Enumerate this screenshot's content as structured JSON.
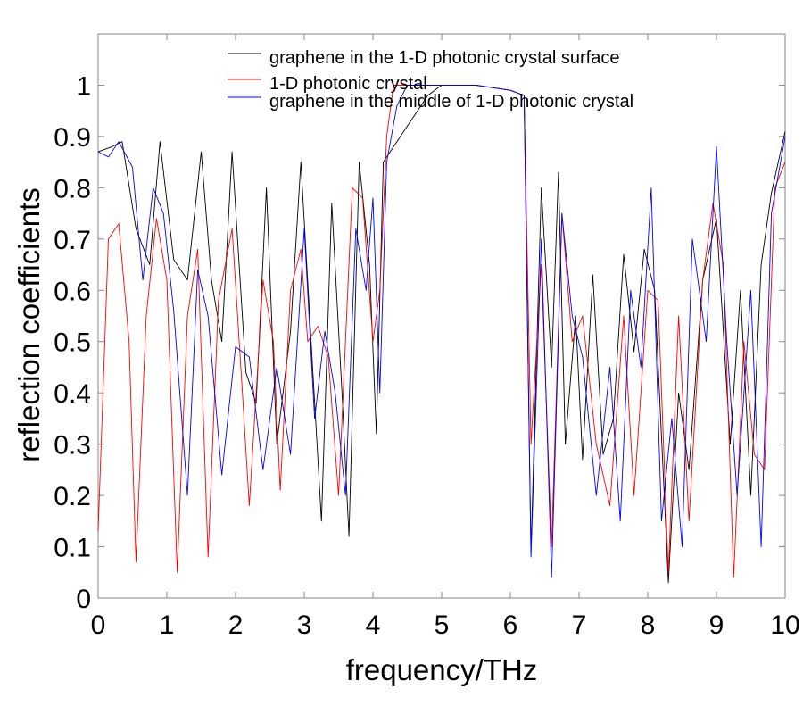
{
  "chart_data": {
    "type": "line",
    "xlabel": "frequency/THz",
    "ylabel": "reflection coefficients",
    "xlim": [
      0,
      10
    ],
    "ylim": [
      0,
      1.1
    ],
    "xticks": [
      0,
      1,
      2,
      3,
      4,
      5,
      6,
      7,
      8,
      9,
      10
    ],
    "yticks": [
      0,
      0.1,
      0.2,
      0.3,
      0.4,
      0.5,
      0.6,
      0.7,
      0.8,
      0.9,
      1
    ],
    "grid": false,
    "legend_position": "top-center",
    "series": [
      {
        "name": "graphene in the 1-D photonic crystal surface",
        "color": "#000000",
        "x": [
          0,
          0.2,
          0.35,
          0.55,
          0.75,
          0.9,
          1.1,
          1.3,
          1.5,
          1.65,
          1.8,
          1.95,
          2.15,
          2.3,
          2.45,
          2.6,
          2.8,
          2.95,
          3.1,
          3.25,
          3.4,
          3.55,
          3.65,
          3.8,
          3.95,
          4.05,
          4.15,
          4.3,
          4.5,
          4.8,
          5.0,
          5.5,
          6.0,
          6.2,
          6.3,
          6.45,
          6.6,
          6.7,
          6.8,
          6.95,
          7.05,
          7.2,
          7.35,
          7.5,
          7.65,
          7.8,
          7.95,
          8.1,
          8.3,
          8.45,
          8.6,
          8.8,
          9.0,
          9.2,
          9.35,
          9.5,
          9.65,
          9.8,
          10
        ],
        "y": [
          0.87,
          0.88,
          0.89,
          0.72,
          0.65,
          0.89,
          0.66,
          0.62,
          0.87,
          0.62,
          0.5,
          0.87,
          0.44,
          0.38,
          0.8,
          0.3,
          0.52,
          0.85,
          0.5,
          0.15,
          0.77,
          0.4,
          0.12,
          0.85,
          0.65,
          0.32,
          0.85,
          0.88,
          0.92,
          0.98,
          1.0,
          1.0,
          0.99,
          0.98,
          0.09,
          0.8,
          0.45,
          0.83,
          0.3,
          0.55,
          0.27,
          0.63,
          0.28,
          0.35,
          0.67,
          0.48,
          0.68,
          0.6,
          0.03,
          0.4,
          0.25,
          0.62,
          0.74,
          0.3,
          0.6,
          0.2,
          0.65,
          0.79,
          0.91
        ]
      },
      {
        "name": "1-D photonic crystal",
        "color": "#ff0000",
        "x": [
          0,
          0.15,
          0.3,
          0.45,
          0.55,
          0.7,
          0.85,
          1.0,
          1.15,
          1.3,
          1.45,
          1.6,
          1.75,
          1.95,
          2.1,
          2.2,
          2.4,
          2.55,
          2.65,
          2.8,
          2.95,
          3.05,
          3.2,
          3.35,
          3.5,
          3.7,
          3.85,
          4.0,
          4.1,
          4.2,
          4.3,
          4.5,
          5.0,
          5.5,
          6.0,
          6.2,
          6.3,
          6.45,
          6.6,
          6.75,
          6.9,
          7.05,
          7.25,
          7.45,
          7.65,
          7.8,
          8.0,
          8.15,
          8.3,
          8.45,
          8.6,
          8.8,
          8.95,
          9.1,
          9.25,
          9.4,
          9.55,
          9.7,
          9.85,
          10
        ],
        "y": [
          0.13,
          0.7,
          0.73,
          0.5,
          0.07,
          0.55,
          0.74,
          0.62,
          0.05,
          0.55,
          0.68,
          0.08,
          0.58,
          0.72,
          0.4,
          0.18,
          0.62,
          0.5,
          0.21,
          0.6,
          0.68,
          0.5,
          0.53,
          0.47,
          0.2,
          0.8,
          0.78,
          0.5,
          0.6,
          0.9,
          1.0,
          1.0,
          1.0,
          1.0,
          0.99,
          0.98,
          0.3,
          0.65,
          0.1,
          0.75,
          0.5,
          0.55,
          0.3,
          0.18,
          0.55,
          0.2,
          0.6,
          0.58,
          0.05,
          0.55,
          0.15,
          0.62,
          0.77,
          0.65,
          0.04,
          0.5,
          0.28,
          0.25,
          0.8,
          0.85
        ]
      },
      {
        "name": "graphene in the middle of 1-D photonic crystal",
        "color": "#0000ff",
        "x": [
          0,
          0.15,
          0.3,
          0.5,
          0.65,
          0.8,
          0.95,
          1.1,
          1.3,
          1.45,
          1.6,
          1.8,
          2.0,
          2.2,
          2.4,
          2.6,
          2.8,
          3.0,
          3.15,
          3.3,
          3.45,
          3.6,
          3.75,
          3.9,
          4.0,
          4.1,
          4.2,
          4.35,
          4.5,
          5.0,
          5.5,
          6.0,
          6.2,
          6.3,
          6.45,
          6.6,
          6.75,
          6.9,
          7.05,
          7.25,
          7.45,
          7.6,
          7.75,
          7.9,
          8.05,
          8.2,
          8.35,
          8.5,
          8.65,
          8.85,
          9.0,
          9.15,
          9.3,
          9.5,
          9.65,
          9.8,
          10
        ],
        "y": [
          0.87,
          0.86,
          0.89,
          0.84,
          0.62,
          0.8,
          0.75,
          0.56,
          0.2,
          0.64,
          0.55,
          0.24,
          0.49,
          0.47,
          0.25,
          0.45,
          0.28,
          0.72,
          0.35,
          0.52,
          0.4,
          0.2,
          0.72,
          0.6,
          0.78,
          0.4,
          0.85,
          0.96,
          1.0,
          1.0,
          1.0,
          0.99,
          0.98,
          0.08,
          0.7,
          0.04,
          0.75,
          0.55,
          0.47,
          0.2,
          0.45,
          0.15,
          0.6,
          0.45,
          0.8,
          0.15,
          0.35,
          0.1,
          0.7,
          0.5,
          0.88,
          0.5,
          0.2,
          0.6,
          0.1,
          0.75,
          0.9
        ]
      }
    ]
  }
}
